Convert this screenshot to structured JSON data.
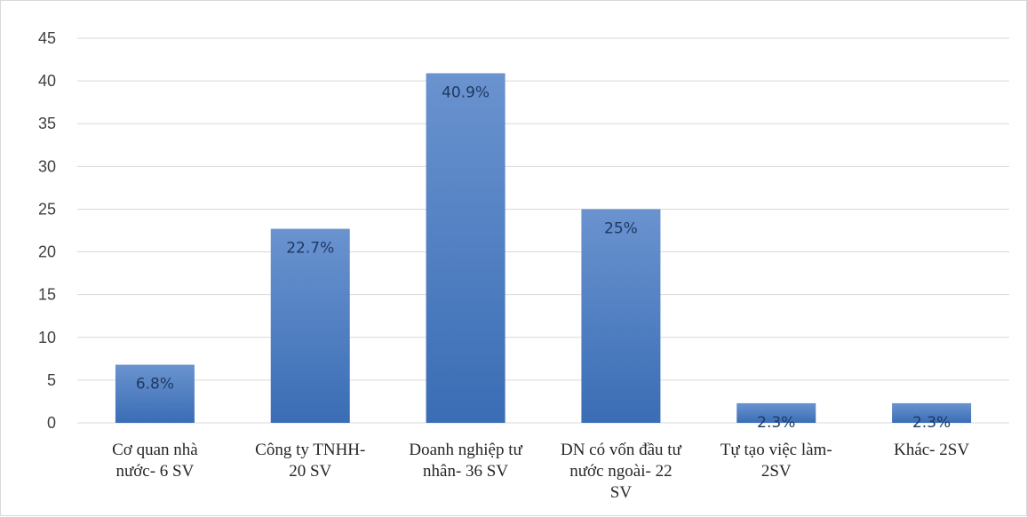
{
  "chart_data": {
    "type": "bar",
    "title": "",
    "xlabel": "",
    "ylabel": "",
    "ylim": [
      0,
      45
    ],
    "yticks": [
      0,
      5,
      10,
      15,
      20,
      25,
      30,
      35,
      40,
      45
    ],
    "grid": true,
    "legend": "none",
    "categories": [
      [
        "Cơ quan nhà",
        "nước- 6 SV"
      ],
      [
        "Công ty TNHH-",
        "20 SV"
      ],
      [
        "Doanh nghiệp tư",
        "nhân- 36 SV"
      ],
      [
        "DN có vốn đầu tư",
        "nước ngoài- 22",
        "SV"
      ],
      [
        "Tự tạo việc làm-",
        "2SV"
      ],
      [
        "Khác- 2SV"
      ]
    ],
    "values": [
      6.8,
      22.7,
      40.9,
      25,
      2.3,
      2.3
    ],
    "data_labels": [
      "6.8%",
      "22.7%",
      "40.9%",
      "25%",
      "2.3%",
      "2.3%"
    ],
    "colors": {
      "bar_top": "#6a93cf",
      "bar_bottom": "#3a6db5",
      "grid": "#d9d9d9",
      "label": "#1f3864"
    }
  }
}
